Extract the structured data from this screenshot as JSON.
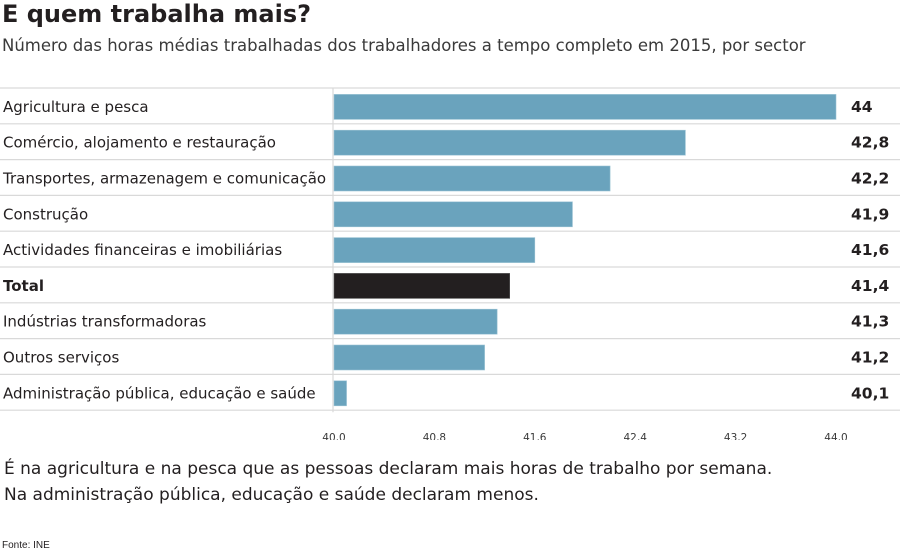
{
  "header": {
    "title": "E quem trabalha mais?",
    "subtitle": "Número das horas médias trabalhadas dos trabalhadores a tempo completo em 2015, por sector"
  },
  "chart_data": {
    "type": "bar",
    "orientation": "horizontal",
    "title": "E quem trabalha mais?",
    "subtitle": "Número das horas médias trabalhadas dos trabalhadores a tempo completo em 2015, por sector",
    "xlabel": "",
    "ylabel": "",
    "xlim": [
      40.0,
      44.0
    ],
    "ticks": [
      40.0,
      40.8,
      41.6,
      42.4,
      43.2,
      44.0
    ],
    "tick_labels": [
      "40,0",
      "40,8",
      "41,6",
      "42,4",
      "43,2",
      "44,0"
    ],
    "categories": [
      "Agricultura e pesca",
      "Comércio, alojamento e restauração",
      "Transportes, armazenagem e comunicação",
      "Construção",
      "Actividades financeiras e imobiliárias",
      "Total",
      "Indústrias transformadoras",
      "Outros serviços",
      "Administração pública, educação e saúde"
    ],
    "values": [
      44.0,
      42.8,
      42.2,
      41.9,
      41.6,
      41.4,
      41.3,
      41.2,
      40.1
    ],
    "value_labels": [
      "44",
      "42,8",
      "42,2",
      "41,9",
      "41,6",
      "41,4",
      "41,3",
      "41,2",
      "40,1"
    ],
    "highlight": [
      "Total"
    ],
    "colors": {
      "bar": "#6aa3bd",
      "highlight_bar": "#231f20",
      "grid": "#d9d9d9"
    },
    "grid": false,
    "legend": "none"
  },
  "notes": {
    "line1": " É na agricultura e na pesca que as pessoas declaram mais horas de trabalho por semana.",
    "line2": "Na administração pública, educação e saúde declaram menos."
  },
  "source": "Fonte: INE"
}
